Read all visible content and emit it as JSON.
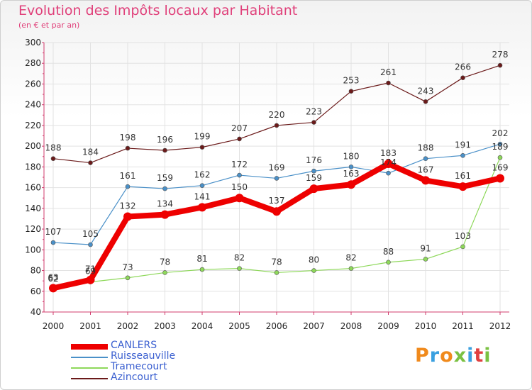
{
  "chart_data": {
    "type": "line",
    "title": "Evolution des Impôts locaux par Habitant",
    "subtitle": "(en € et par an)",
    "x": [
      "2000",
      "2001",
      "2002",
      "2003",
      "2004",
      "2005",
      "2006",
      "2007",
      "2008",
      "2009",
      "2010",
      "2011",
      "2012"
    ],
    "ylim": [
      40,
      300
    ],
    "yticks": [
      40,
      60,
      80,
      100,
      120,
      140,
      160,
      180,
      200,
      220,
      240,
      260,
      280,
      300
    ],
    "series": [
      {
        "name": "Azincourt",
        "color": "#6b1a1a",
        "values": [
          188,
          184,
          198,
          196,
          199,
          207,
          220,
          223,
          253,
          261,
          243,
          266,
          278
        ]
      },
      {
        "name": "Ruisseauville",
        "color": "#4a90c8",
        "values": [
          107,
          105,
          161,
          159,
          162,
          172,
          169,
          176,
          180,
          174,
          188,
          191,
          202
        ]
      },
      {
        "name": "Tramecourt",
        "color": "#8ed85a",
        "values": [
          62,
          69,
          73,
          78,
          81,
          82,
          78,
          80,
          82,
          88,
          91,
          103,
          189
        ]
      },
      {
        "name": "CANLERS",
        "color": "#ee0000",
        "values": [
          63,
          71,
          132,
          134,
          141,
          150,
          137,
          159,
          163,
          183,
          167,
          161,
          169
        ]
      }
    ],
    "legend": [
      "CANLERS",
      "Ruisseauville",
      "Tramecourt",
      "Azincourt"
    ]
  },
  "logo": {
    "text": "Proxiti",
    "colors": [
      "#f08a1c",
      "#3aa0e0",
      "#f08a1c",
      "#7ac142",
      "#3aa0e0",
      "#e04040",
      "#7ac142"
    ]
  }
}
